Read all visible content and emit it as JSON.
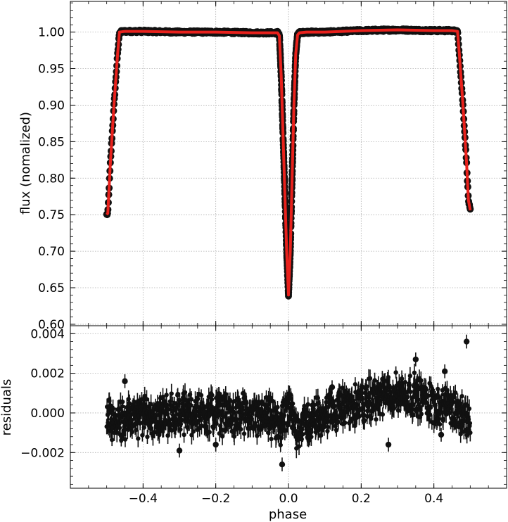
{
  "chart_data": [
    {
      "panel": "top",
      "type": "scatter",
      "ylabel": "flux  (nomalized)",
      "xlim": [
        -0.6,
        0.6
      ],
      "ylim": [
        0.598,
        1.042
      ],
      "xticks": [
        -0.4,
        -0.2,
        0.0,
        0.2,
        0.4
      ],
      "yticks": [
        0.6,
        0.65,
        0.7,
        0.75,
        0.8,
        0.85,
        0.9,
        0.95,
        1.0
      ],
      "ytick_labels": [
        "0.60",
        "0.65",
        "0.70",
        "0.75",
        "0.80",
        "0.85",
        "0.90",
        "0.95",
        "1.00"
      ],
      "grid": true,
      "colors": {
        "data": "#111111",
        "model": "#e8211c"
      },
      "series": [
        {
          "kind": "data points",
          "x": [
            -0.5,
            -0.497,
            -0.49,
            -0.48,
            -0.47,
            -0.465,
            -0.45,
            -0.4,
            -0.3,
            -0.2,
            -0.1,
            -0.05,
            -0.03,
            -0.025,
            -0.02,
            -0.015,
            -0.01,
            -0.005,
            0.0,
            0.005,
            0.01,
            0.015,
            0.02,
            0.025,
            0.03,
            0.05,
            0.1,
            0.2,
            0.3,
            0.4,
            0.45,
            0.465,
            0.47,
            0.48,
            0.49,
            0.495,
            0.5
          ],
          "y": [
            0.75,
            0.752,
            0.82,
            0.9,
            0.97,
            1.0,
            1.001,
            1.001,
            1.0,
            1.0,
            0.999,
            0.999,
            0.999,
            0.995,
            0.94,
            0.86,
            0.78,
            0.7,
            0.64,
            0.7,
            0.8,
            0.9,
            0.97,
            0.996,
            0.999,
            1.0,
            1.0,
            1.002,
            1.003,
            1.002,
            1.002,
            1.001,
            0.97,
            0.9,
            0.82,
            0.77,
            0.756
          ]
        },
        {
          "kind": "model",
          "x": [
            -0.5,
            -0.497,
            -0.49,
            -0.48,
            -0.47,
            -0.465,
            -0.45,
            -0.4,
            -0.3,
            -0.2,
            -0.1,
            -0.05,
            -0.03,
            -0.025,
            -0.02,
            -0.015,
            -0.01,
            -0.005,
            0.0,
            0.005,
            0.01,
            0.015,
            0.02,
            0.025,
            0.03,
            0.05,
            0.1,
            0.2,
            0.3,
            0.4,
            0.45,
            0.465,
            0.47,
            0.48,
            0.49,
            0.495,
            0.5
          ],
          "y": [
            0.75,
            0.752,
            0.82,
            0.9,
            0.97,
            1.0,
            1.001,
            1.001,
            1.0,
            1.0,
            0.999,
            0.999,
            0.999,
            0.995,
            0.94,
            0.86,
            0.78,
            0.7,
            0.64,
            0.7,
            0.8,
            0.9,
            0.97,
            0.996,
            0.999,
            1.0,
            1.0,
            1.002,
            1.003,
            1.002,
            1.002,
            1.001,
            0.97,
            0.9,
            0.82,
            0.77,
            0.756
          ]
        }
      ]
    },
    {
      "panel": "bottom",
      "type": "scatter",
      "xlabel": "phase",
      "ylabel": "residuals",
      "xlim": [
        -0.6,
        0.6
      ],
      "ylim": [
        -0.0038,
        0.0044
      ],
      "xticks": [
        -0.4,
        -0.2,
        0.0,
        0.2,
        0.4
      ],
      "xtick_labels": [
        "−0.4",
        "−0.2",
        "0.0",
        "0.2",
        "0.4"
      ],
      "yticks": [
        -0.002,
        0.0,
        0.002,
        0.004
      ],
      "ytick_labels": [
        "−0.002",
        "0.000",
        "0.002",
        "0.004"
      ],
      "grid": true,
      "colors": {
        "data": "#111111"
      },
      "trend": {
        "x": [
          -0.5,
          -0.45,
          -0.4,
          -0.3,
          -0.2,
          -0.1,
          -0.05,
          -0.02,
          0.0,
          0.02,
          0.05,
          0.1,
          0.2,
          0.25,
          0.3,
          0.35,
          0.4,
          0.45,
          0.5
        ],
        "y": [
          -0.0003,
          -0.0003,
          -0.0002,
          0.0,
          0.0,
          -0.0002,
          -0.0003,
          -0.0007,
          0.0002,
          -0.0007,
          -0.0005,
          0.0,
          0.0005,
          0.0008,
          0.001,
          0.0009,
          0.0005,
          0.0002,
          -0.0003
        ]
      },
      "outliers": [
        {
          "x": -0.45,
          "y": 0.0016
        },
        {
          "x": 0.49,
          "y": 0.0036
        },
        {
          "x": -0.3,
          "y": -0.0019
        },
        {
          "x": -0.0175,
          "y": -0.0026
        },
        {
          "x": 0.12,
          "y": 0.0013
        },
        {
          "x": 0.35,
          "y": 0.0027
        },
        {
          "x": 0.43,
          "y": 0.0021
        },
        {
          "x": 0.42,
          "y": -0.0011
        },
        {
          "x": 0.275,
          "y": -0.0016
        },
        {
          "x": -0.2,
          "y": -0.0016
        }
      ]
    }
  ]
}
